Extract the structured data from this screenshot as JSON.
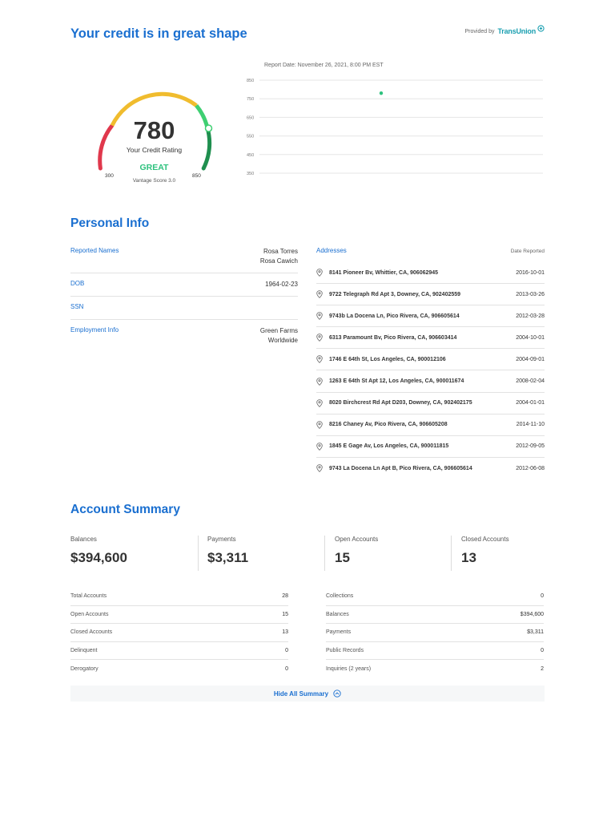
{
  "header": {
    "title": "Your credit is in great shape",
    "provided_by": "Provided by",
    "brand": "TransUnion"
  },
  "gauge": {
    "score": "780",
    "label": "Your Credit Rating",
    "grade": "GREAT",
    "model": "Vantage Score 3.0",
    "min": "300",
    "max": "850"
  },
  "chart_data": {
    "type": "scatter",
    "title": "Report Date: November 26, 2021, 8:00 PM EST",
    "y_ticks": [
      "850",
      "750",
      "650",
      "550",
      "450",
      "350"
    ],
    "ylim": [
      350,
      850
    ],
    "points": [
      {
        "x": 0.5,
        "y": 780
      }
    ],
    "point_color": "#2ec27e",
    "grid": true
  },
  "personal_info": {
    "title": "Personal Info",
    "rows": [
      {
        "key": "Reported Names",
        "values": [
          "Rosa Torres",
          "Rosa Cawich"
        ]
      },
      {
        "key": "DOB",
        "values": [
          "1964-02-23"
        ]
      },
      {
        "key": "SSN",
        "values": [
          ""
        ]
      },
      {
        "key": "Employment Info",
        "values": [
          "Green Farms",
          "Worldwide"
        ]
      }
    ]
  },
  "addresses": {
    "title": "Addresses",
    "date_header": "Date Reported",
    "items": [
      {
        "address": "8141 Pioneer Bv, Whittier, CA, 906062945",
        "date": "2016-10-01"
      },
      {
        "address": "9722 Telegraph Rd Apt 3, Downey, CA, 902402559",
        "date": "2013-03-26"
      },
      {
        "address": "9743b La Docena Ln, Pico Rivera, CA, 906605614",
        "date": "2012-03-28"
      },
      {
        "address": "6313 Paramount Bv, Pico Rivera, CA, 906603414",
        "date": "2004-10-01"
      },
      {
        "address": "1746 E 64th St, Los Angeles, CA, 900012106",
        "date": "2004-09-01"
      },
      {
        "address": "1263 E 64th St Apt 12, Los Angeles, CA, 900011674",
        "date": "2008-02-04"
      },
      {
        "address": "8020 Birchcrest Rd Apt D203, Downey, CA, 902402175",
        "date": "2004-01-01"
      },
      {
        "address": "8216 Chaney Av, Pico Rivera, CA, 906605208",
        "date": "2014-11-10"
      },
      {
        "address": "1845 E Gage Av, Los Angeles, CA, 900011815",
        "date": "2012-09-05"
      },
      {
        "address": "9743 La Docena Ln Apt B, Pico Rivera, CA, 906605614",
        "date": "2012-06-08"
      }
    ]
  },
  "account_summary": {
    "title": "Account Summary",
    "stats": [
      {
        "label": "Balances",
        "value": "$394,600"
      },
      {
        "label": "Payments",
        "value": "$3,311"
      },
      {
        "label": "Open Accounts",
        "value": "15"
      },
      {
        "label": "Closed Accounts",
        "value": "13"
      }
    ],
    "left_table": [
      {
        "label": "Total Accounts",
        "value": "28"
      },
      {
        "label": "Open Accounts",
        "value": "15"
      },
      {
        "label": "Closed Accounts",
        "value": "13"
      },
      {
        "label": "Delinquent",
        "value": "0"
      },
      {
        "label": "Derogatory",
        "value": "0"
      }
    ],
    "right_table": [
      {
        "label": "Collections",
        "value": "0"
      },
      {
        "label": "Balances",
        "value": "$394,600"
      },
      {
        "label": "Payments",
        "value": "$3,311"
      },
      {
        "label": "Public Records",
        "value": "0"
      },
      {
        "label": "Inquiries (2 years)",
        "value": "2"
      }
    ],
    "hide_label": "Hide All Summary"
  }
}
